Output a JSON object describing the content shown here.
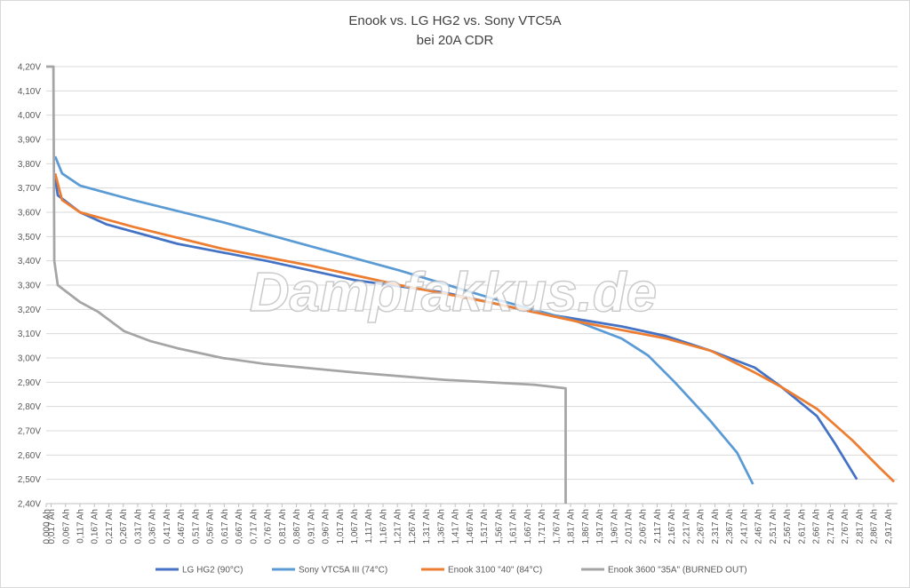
{
  "chart_data": {
    "type": "line",
    "title": "Enook vs. LG HG2 vs. Sony VTC5A",
    "subtitle": "bei 20A CDR",
    "watermark": "Dampfakkus.de",
    "grid": true,
    "xlim": [
      0,
      2.95
    ],
    "ylim": [
      2.4,
      4.2
    ],
    "yticks": [
      {
        "value": 2.4,
        "label": "2,40V"
      },
      {
        "value": 2.5,
        "label": "2,50V"
      },
      {
        "value": 2.6,
        "label": "2,60V"
      },
      {
        "value": 2.7,
        "label": "2,70V"
      },
      {
        "value": 2.8,
        "label": "2,80V"
      },
      {
        "value": 2.9,
        "label": "2,90V"
      },
      {
        "value": 3.0,
        "label": "3,00V"
      },
      {
        "value": 3.1,
        "label": "3,10V"
      },
      {
        "value": 3.2,
        "label": "3,20V"
      },
      {
        "value": 3.3,
        "label": "3,30V"
      },
      {
        "value": 3.4,
        "label": "3,40V"
      },
      {
        "value": 3.5,
        "label": "3,50V"
      },
      {
        "value": 3.6,
        "label": "3,60V"
      },
      {
        "value": 3.7,
        "label": "3,70V"
      },
      {
        "value": 3.8,
        "label": "3,80V"
      },
      {
        "value": 3.9,
        "label": "3,90V"
      },
      {
        "value": 4.0,
        "label": "4,00V"
      },
      {
        "value": 4.1,
        "label": "4,10V"
      },
      {
        "value": 4.2,
        "label": "4,20V"
      }
    ],
    "xticks": [
      {
        "value": 0,
        "label": "0,000 Ah"
      },
      {
        "value": 0.017,
        "label": "0,017 Ah"
      },
      {
        "value": 0.067,
        "label": "0,067 Ah"
      },
      {
        "value": 0.117,
        "label": "0,117 Ah"
      },
      {
        "value": 0.167,
        "label": "0,167 Ah"
      },
      {
        "value": 0.217,
        "label": "0,217 Ah"
      },
      {
        "value": 0.267,
        "label": "0,267 Ah"
      },
      {
        "value": 0.317,
        "label": "0,317 Ah"
      },
      {
        "value": 0.367,
        "label": "0,367 Ah"
      },
      {
        "value": 0.417,
        "label": "0,417 Ah"
      },
      {
        "value": 0.467,
        "label": "0,467 Ah"
      },
      {
        "value": 0.517,
        "label": "0,517 Ah"
      },
      {
        "value": 0.567,
        "label": "0,567 Ah"
      },
      {
        "value": 0.617,
        "label": "0,617 Ah"
      },
      {
        "value": 0.667,
        "label": "0,667 Ah"
      },
      {
        "value": 0.717,
        "label": "0,717 Ah"
      },
      {
        "value": 0.767,
        "label": "0,767 Ah"
      },
      {
        "value": 0.817,
        "label": "0,817 Ah"
      },
      {
        "value": 0.867,
        "label": "0,867 Ah"
      },
      {
        "value": 0.917,
        "label": "0,917 Ah"
      },
      {
        "value": 0.967,
        "label": "0,967 Ah"
      },
      {
        "value": 1.017,
        "label": "1,017 Ah"
      },
      {
        "value": 1.067,
        "label": "1,067 Ah"
      },
      {
        "value": 1.117,
        "label": "1,117 Ah"
      },
      {
        "value": 1.167,
        "label": "1,167 Ah"
      },
      {
        "value": 1.217,
        "label": "1,217 Ah"
      },
      {
        "value": 1.267,
        "label": "1,267 Ah"
      },
      {
        "value": 1.317,
        "label": "1,317 Ah"
      },
      {
        "value": 1.367,
        "label": "1,367 Ah"
      },
      {
        "value": 1.417,
        "label": "1,417 Ah"
      },
      {
        "value": 1.467,
        "label": "1,467 Ah"
      },
      {
        "value": 1.517,
        "label": "1,517 Ah"
      },
      {
        "value": 1.567,
        "label": "1,567 Ah"
      },
      {
        "value": 1.617,
        "label": "1,617 Ah"
      },
      {
        "value": 1.667,
        "label": "1,667 Ah"
      },
      {
        "value": 1.717,
        "label": "1,717 Ah"
      },
      {
        "value": 1.767,
        "label": "1,767 Ah"
      },
      {
        "value": 1.817,
        "label": "1,817 Ah"
      },
      {
        "value": 1.867,
        "label": "1,867 Ah"
      },
      {
        "value": 1.917,
        "label": "1,917 Ah"
      },
      {
        "value": 1.967,
        "label": "1,967 Ah"
      },
      {
        "value": 2.017,
        "label": "2,017 Ah"
      },
      {
        "value": 2.067,
        "label": "2,067 Ah"
      },
      {
        "value": 2.117,
        "label": "2,117 Ah"
      },
      {
        "value": 2.167,
        "label": "2,167 Ah"
      },
      {
        "value": 2.217,
        "label": "2,217 Ah"
      },
      {
        "value": 2.267,
        "label": "2,267 Ah"
      },
      {
        "value": 2.317,
        "label": "2,317 Ah"
      },
      {
        "value": 2.367,
        "label": "2,367 Ah"
      },
      {
        "value": 2.417,
        "label": "2,417 Ah"
      },
      {
        "value": 2.467,
        "label": "2,467 Ah"
      },
      {
        "value": 2.517,
        "label": "2,517 Ah"
      },
      {
        "value": 2.567,
        "label": "2,567 Ah"
      },
      {
        "value": 2.617,
        "label": "2,617 Ah"
      },
      {
        "value": 2.667,
        "label": "2,667 Ah"
      },
      {
        "value": 2.717,
        "label": "2,717 Ah"
      },
      {
        "value": 2.767,
        "label": "2,767 Ah"
      },
      {
        "value": 2.817,
        "label": "2,817 Ah"
      },
      {
        "value": 2.867,
        "label": "2,867 Ah"
      },
      {
        "value": 2.917,
        "label": "2,917 Ah"
      }
    ],
    "series": [
      {
        "name": "LG HG2 (90°C)",
        "color": "#4472c4",
        "x": [
          0.031,
          0.04,
          0.117,
          0.21,
          0.455,
          0.763,
          1.071,
          1.378,
          1.686,
          1.994,
          2.148,
          2.302,
          2.455,
          2.548,
          2.671,
          2.732,
          2.809
        ],
        "values": [
          3.74,
          3.67,
          3.6,
          3.55,
          3.47,
          3.4,
          3.32,
          3.27,
          3.19,
          3.13,
          3.09,
          3.03,
          2.96,
          2.88,
          2.76,
          2.65,
          2.5
        ]
      },
      {
        "name": "Sony VTC5A III (74°C)",
        "color": "#5b9bd5",
        "x": [
          0.031,
          0.055,
          0.117,
          0.302,
          0.609,
          0.917,
          1.225,
          1.532,
          1.84,
          1.994,
          2.086,
          2.178,
          2.302,
          2.394,
          2.449
        ],
        "values": [
          3.83,
          3.76,
          3.71,
          3.65,
          3.56,
          3.46,
          3.36,
          3.25,
          3.15,
          3.08,
          3.01,
          2.9,
          2.74,
          2.61,
          2.48
        ]
      },
      {
        "name": "Enook 3100 \"40\" (84°C)",
        "color": "#ed7d31",
        "x": [
          0.031,
          0.055,
          0.117,
          0.302,
          0.609,
          0.917,
          1.225,
          1.532,
          1.84,
          2.148,
          2.302,
          2.455,
          2.548,
          2.671,
          2.794,
          2.886,
          2.938
        ],
        "values": [
          3.76,
          3.65,
          3.6,
          3.54,
          3.45,
          3.38,
          3.3,
          3.23,
          3.15,
          3.08,
          3.03,
          2.94,
          2.88,
          2.79,
          2.66,
          2.55,
          2.49
        ]
      },
      {
        "name": "Enook 3600 \"35A\" (BURNED OUT)",
        "color": "#a5a5a5",
        "x": [
          0,
          0.025,
          0.028,
          0.04,
          0.117,
          0.18,
          0.27,
          0.36,
          0.455,
          0.61,
          0.76,
          1.07,
          1.38,
          1.69,
          1.8,
          1.8
        ],
        "values": [
          4.2,
          4.2,
          3.4,
          3.3,
          3.23,
          3.19,
          3.11,
          3.07,
          3.04,
          3.0,
          2.975,
          2.94,
          2.91,
          2.89,
          2.875,
          2.4
        ]
      }
    ]
  }
}
